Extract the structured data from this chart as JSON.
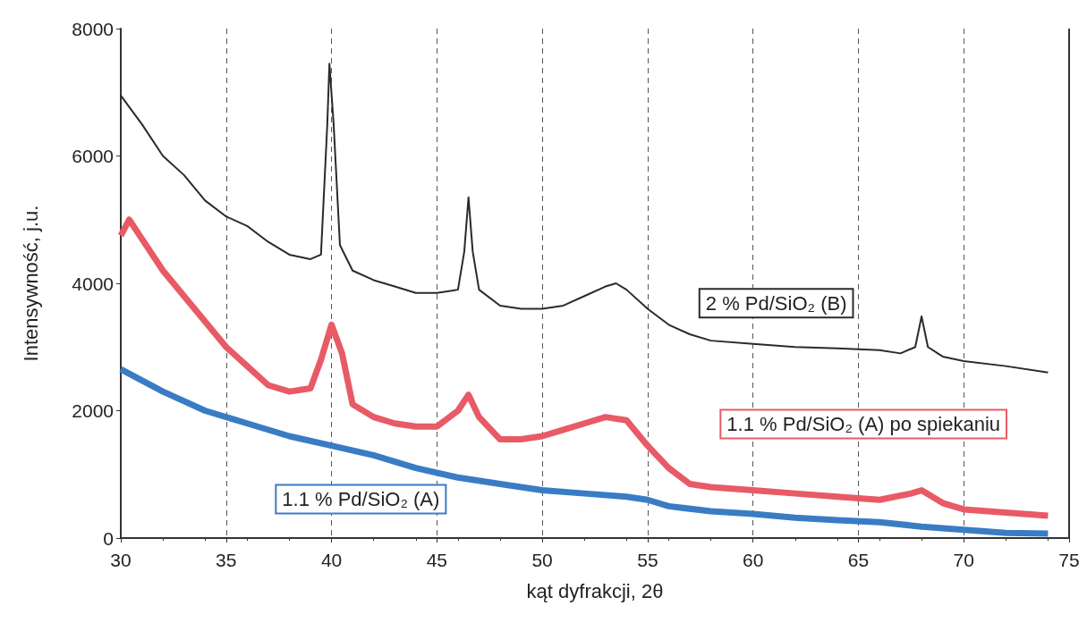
{
  "chart_data": {
    "type": "line",
    "xlabel": "kąt dyfrakcji, 2θ",
    "ylabel": "Intensywność, j.u.",
    "xlim": [
      30,
      75
    ],
    "xticks": [
      30,
      35,
      40,
      45,
      50,
      55,
      60,
      65,
      70,
      75
    ],
    "ylim": [
      0,
      8000
    ],
    "yticks": [
      0,
      2000,
      4000,
      6000,
      8000
    ],
    "grid": "x",
    "legend": false,
    "marker": "none",
    "series": [
      {
        "name": "2 % Pd/SiO₂ (B)",
        "color": "#2b2b26",
        "x": [
          30,
          31,
          32,
          33,
          34,
          35,
          36,
          37,
          38,
          39,
          39.5,
          39.8,
          39.9,
          40.1,
          40.4,
          41,
          42,
          43,
          44,
          45,
          46,
          46.3,
          46.5,
          46.7,
          47,
          48,
          49,
          50,
          51,
          52,
          53,
          53.5,
          54,
          55,
          56,
          57,
          58,
          60,
          62,
          64,
          66,
          67,
          67.7,
          68,
          68.3,
          69,
          70,
          72,
          74
        ],
        "values": [
          6950,
          6500,
          6000,
          5700,
          5300,
          5050,
          4900,
          4650,
          4450,
          4380,
          4450,
          6500,
          7450,
          6500,
          4600,
          4200,
          4050,
          3950,
          3850,
          3850,
          3900,
          4500,
          5350,
          4500,
          3900,
          3650,
          3600,
          3600,
          3650,
          3800,
          3950,
          4000,
          3900,
          3600,
          3350,
          3200,
          3100,
          3050,
          3000,
          2980,
          2950,
          2900,
          3000,
          3480,
          3000,
          2850,
          2780,
          2700,
          2600
        ]
      },
      {
        "name": "1.1 % Pd/SiO₂ (A) po spiekaniu",
        "color": "#e85a66",
        "x": [
          30,
          30.4,
          31,
          32,
          33,
          34,
          35,
          36,
          37,
          38,
          39,
          39.5,
          40,
          40.5,
          41,
          42,
          43,
          44,
          45,
          46,
          46.5,
          47,
          48,
          49,
          50,
          51,
          52,
          53,
          54,
          55,
          56,
          57,
          58,
          60,
          62,
          64,
          66,
          67.5,
          68,
          69,
          70,
          72,
          74
        ],
        "values": [
          4750,
          5000,
          4700,
          4200,
          3800,
          3400,
          3000,
          2700,
          2400,
          2300,
          2350,
          2800,
          3350,
          2900,
          2100,
          1900,
          1800,
          1750,
          1750,
          2000,
          2250,
          1900,
          1550,
          1550,
          1600,
          1700,
          1800,
          1900,
          1850,
          1450,
          1100,
          850,
          800,
          750,
          700,
          650,
          600,
          700,
          750,
          550,
          450,
          400,
          350
        ]
      },
      {
        "name": "1.1 % Pd/SiO₂ (A)",
        "color": "#3a7cc4",
        "x": [
          30,
          32,
          34,
          36,
          38,
          40,
          42,
          44,
          46,
          48,
          50,
          52,
          54,
          55,
          56,
          58,
          60,
          62,
          64,
          66,
          68,
          70,
          72,
          74
        ],
        "values": [
          2650,
          2300,
          2000,
          1800,
          1600,
          1450,
          1300,
          1100,
          950,
          850,
          750,
          700,
          650,
          600,
          500,
          420,
          380,
          320,
          280,
          250,
          180,
          130,
          80,
          70
        ]
      }
    ]
  }
}
